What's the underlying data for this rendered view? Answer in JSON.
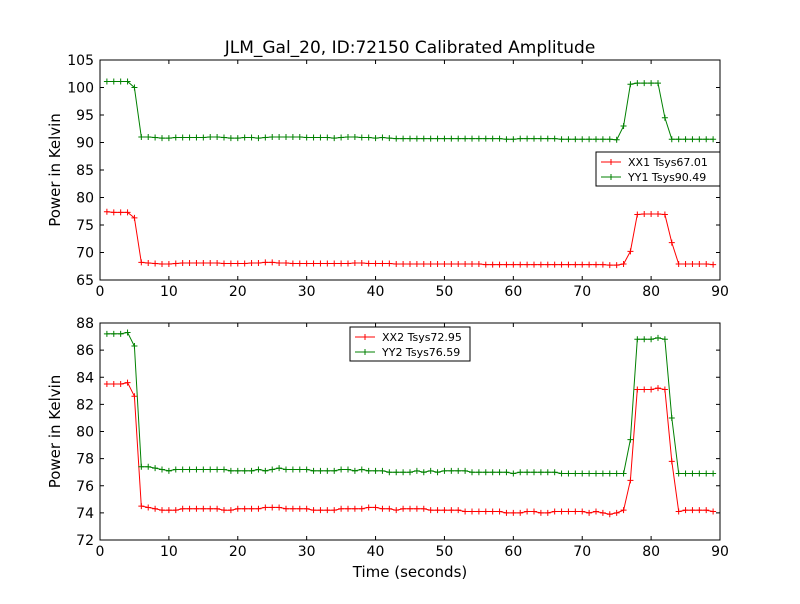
{
  "title": "JLM_Gal_20, ID:72150 Calibrated Amplitude",
  "colors": {
    "xx": "#ff0000",
    "yy": "#008000",
    "axes": "#000000",
    "background": "#ffffff"
  },
  "chart_data": [
    {
      "type": "line",
      "title": "JLM_Gal_20, ID:72150 Calibrated Amplitude",
      "xlabel": "",
      "ylabel": "Power in Kelvin",
      "xlim": [
        0,
        90
      ],
      "ylim": [
        65,
        105
      ],
      "xticks": [
        "0",
        "10",
        "20",
        "30",
        "40",
        "50",
        "60",
        "70",
        "80",
        "90"
      ],
      "yticks": [
        "65",
        "70",
        "75",
        "80",
        "85",
        "90",
        "95",
        "100",
        "105"
      ],
      "legend_position": "right",
      "grid": false,
      "marker": "+",
      "x": [
        1,
        2,
        3,
        4,
        5,
        6,
        7,
        8,
        9,
        10,
        11,
        12,
        13,
        14,
        15,
        16,
        17,
        18,
        19,
        20,
        21,
        22,
        23,
        24,
        25,
        26,
        27,
        28,
        29,
        30,
        31,
        32,
        33,
        34,
        35,
        36,
        37,
        38,
        39,
        40,
        41,
        42,
        43,
        44,
        45,
        46,
        47,
        48,
        49,
        50,
        51,
        52,
        53,
        54,
        55,
        56,
        57,
        58,
        59,
        60,
        61,
        62,
        63,
        64,
        65,
        66,
        67,
        68,
        69,
        70,
        71,
        72,
        73,
        74,
        75,
        76,
        77,
        78,
        79,
        80,
        81,
        82,
        83,
        84,
        85,
        86,
        87,
        88,
        89
      ],
      "series": [
        {
          "name": "XX1 Tsys67.01",
          "color": "#ff0000",
          "values": [
            77.4,
            77.3,
            77.3,
            77.3,
            76.3,
            68.2,
            68.1,
            68.0,
            67.9,
            67.9,
            68.0,
            68.1,
            68.1,
            68.1,
            68.1,
            68.1,
            68.1,
            68.0,
            68.0,
            68.0,
            68.0,
            68.1,
            68.1,
            68.2,
            68.2,
            68.1,
            68.1,
            68.0,
            68.0,
            68.0,
            68.0,
            68.0,
            68.0,
            68.0,
            68.0,
            68.0,
            68.1,
            68.1,
            68.0,
            68.0,
            68.0,
            68.0,
            67.9,
            67.9,
            67.9,
            67.9,
            67.9,
            67.9,
            67.9,
            67.9,
            67.9,
            67.9,
            67.9,
            67.9,
            67.9,
            67.8,
            67.8,
            67.8,
            67.8,
            67.8,
            67.8,
            67.8,
            67.8,
            67.8,
            67.8,
            67.8,
            67.8,
            67.8,
            67.8,
            67.8,
            67.8,
            67.8,
            67.8,
            67.7,
            67.7,
            67.9,
            70.2,
            76.9,
            77.0,
            77.0,
            77.0,
            76.9,
            71.8,
            67.9,
            67.9,
            67.9,
            67.9,
            67.9,
            67.8
          ]
        },
        {
          "name": "YY1 Tsys90.49",
          "color": "#008000",
          "values": [
            101.1,
            101.1,
            101.1,
            101.1,
            100.0,
            91.0,
            91.0,
            90.9,
            90.8,
            90.8,
            90.9,
            90.9,
            90.9,
            90.9,
            90.9,
            91.0,
            91.0,
            90.9,
            90.8,
            90.8,
            90.9,
            90.9,
            90.8,
            90.9,
            91.0,
            91.0,
            91.0,
            91.0,
            91.0,
            90.9,
            90.9,
            90.9,
            90.9,
            90.8,
            90.9,
            91.0,
            91.0,
            90.9,
            90.9,
            90.8,
            90.9,
            90.8,
            90.7,
            90.7,
            90.7,
            90.7,
            90.7,
            90.7,
            90.7,
            90.7,
            90.7,
            90.7,
            90.7,
            90.7,
            90.7,
            90.7,
            90.7,
            90.7,
            90.6,
            90.6,
            90.7,
            90.7,
            90.7,
            90.7,
            90.7,
            90.7,
            90.6,
            90.6,
            90.6,
            90.6,
            90.6,
            90.6,
            90.6,
            90.6,
            90.5,
            93.0,
            100.6,
            100.8,
            100.8,
            100.8,
            100.8,
            94.5,
            90.6,
            90.6,
            90.6,
            90.6,
            90.6,
            90.6,
            90.6
          ]
        }
      ]
    },
    {
      "type": "line",
      "title": "",
      "xlabel": "Time (seconds)",
      "ylabel": "Power in Kelvin",
      "xlim": [
        0,
        90
      ],
      "ylim": [
        72,
        88
      ],
      "xticks": [
        "0",
        "10",
        "20",
        "30",
        "40",
        "50",
        "60",
        "70",
        "80",
        "90"
      ],
      "yticks": [
        "72",
        "74",
        "76",
        "78",
        "80",
        "82",
        "84",
        "86",
        "88"
      ],
      "legend_position": "top-center",
      "grid": false,
      "marker": "+",
      "x": [
        1,
        2,
        3,
        4,
        5,
        6,
        7,
        8,
        9,
        10,
        11,
        12,
        13,
        14,
        15,
        16,
        17,
        18,
        19,
        20,
        21,
        22,
        23,
        24,
        25,
        26,
        27,
        28,
        29,
        30,
        31,
        32,
        33,
        34,
        35,
        36,
        37,
        38,
        39,
        40,
        41,
        42,
        43,
        44,
        45,
        46,
        47,
        48,
        49,
        50,
        51,
        52,
        53,
        54,
        55,
        56,
        57,
        58,
        59,
        60,
        61,
        62,
        63,
        64,
        65,
        66,
        67,
        68,
        69,
        70,
        71,
        72,
        73,
        74,
        75,
        76,
        77,
        78,
        79,
        80,
        81,
        82,
        83,
        84,
        85,
        86,
        87,
        88,
        89
      ],
      "series": [
        {
          "name": "XX2 Tsys72.95",
          "color": "#ff0000",
          "values": [
            83.5,
            83.5,
            83.5,
            83.6,
            82.6,
            74.5,
            74.4,
            74.3,
            74.2,
            74.2,
            74.2,
            74.3,
            74.3,
            74.3,
            74.3,
            74.3,
            74.3,
            74.2,
            74.2,
            74.3,
            74.3,
            74.3,
            74.3,
            74.4,
            74.4,
            74.4,
            74.3,
            74.3,
            74.3,
            74.3,
            74.2,
            74.2,
            74.2,
            74.2,
            74.3,
            74.3,
            74.3,
            74.3,
            74.4,
            74.4,
            74.3,
            74.3,
            74.2,
            74.3,
            74.3,
            74.3,
            74.3,
            74.2,
            74.2,
            74.2,
            74.2,
            74.2,
            74.1,
            74.1,
            74.1,
            74.1,
            74.1,
            74.1,
            74.0,
            74.0,
            74.0,
            74.1,
            74.1,
            74.0,
            74.0,
            74.1,
            74.1,
            74.1,
            74.1,
            74.1,
            74.0,
            74.1,
            74.0,
            73.9,
            74.0,
            74.2,
            76.4,
            83.1,
            83.1,
            83.1,
            83.2,
            83.1,
            77.8,
            74.1,
            74.2,
            74.2,
            74.2,
            74.2,
            74.1
          ]
        },
        {
          "name": "YY2 Tsys76.59",
          "color": "#008000",
          "values": [
            87.2,
            87.2,
            87.2,
            87.3,
            86.3,
            77.4,
            77.4,
            77.3,
            77.2,
            77.1,
            77.2,
            77.2,
            77.2,
            77.2,
            77.2,
            77.2,
            77.2,
            77.2,
            77.1,
            77.1,
            77.1,
            77.1,
            77.2,
            77.1,
            77.2,
            77.3,
            77.2,
            77.2,
            77.2,
            77.2,
            77.1,
            77.1,
            77.1,
            77.1,
            77.2,
            77.2,
            77.1,
            77.2,
            77.1,
            77.1,
            77.1,
            77.0,
            77.0,
            77.0,
            77.0,
            77.1,
            77.0,
            77.1,
            77.0,
            77.1,
            77.1,
            77.1,
            77.1,
            77.0,
            77.0,
            77.0,
            77.0,
            77.0,
            77.0,
            76.9,
            77.0,
            77.0,
            77.0,
            77.0,
            77.0,
            77.0,
            76.9,
            76.9,
            76.9,
            76.9,
            76.9,
            76.9,
            76.9,
            76.9,
            76.9,
            76.9,
            79.4,
            86.8,
            86.8,
            86.8,
            86.9,
            86.8,
            81.0,
            76.9,
            76.9,
            76.9,
            76.9,
            76.9,
            76.9
          ]
        }
      ]
    }
  ]
}
